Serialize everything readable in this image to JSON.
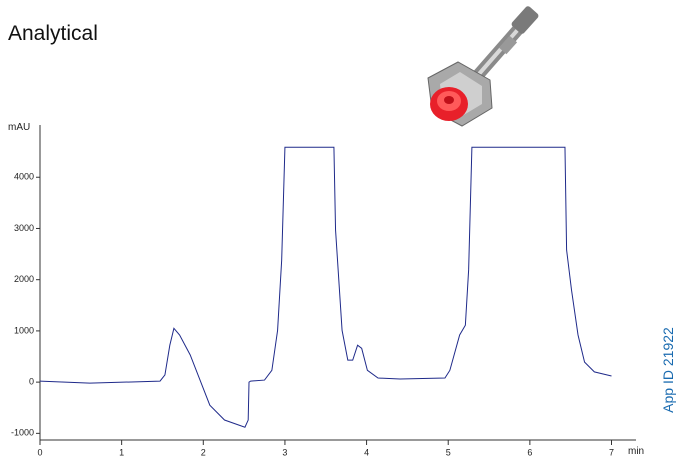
{
  "chart_data": {
    "type": "line",
    "title": "Analytical",
    "y_label": "mAU",
    "x_label": "min",
    "side_note": "App ID 21922",
    "color": "#1f2a8a",
    "x": [
      0,
      0.61,
      1.47,
      1.53,
      1.59,
      1.64,
      1.71,
      1.84,
      1.96,
      2.08,
      2.26,
      2.51,
      2.55,
      2.56,
      2.58,
      2.75,
      2.84,
      2.91,
      2.96,
      3.0,
      3.6,
      3.62,
      3.7,
      3.77,
      3.83,
      3.89,
      3.94,
      4.01,
      4.14,
      4.41,
      4.96,
      5.02,
      5.14,
      5.21,
      5.25,
      5.29,
      6.43,
      6.45,
      6.51,
      6.59,
      6.67,
      6.79,
      7.0
    ],
    "values": [
      20,
      -20,
      20,
      140,
      720,
      1050,
      920,
      530,
      40,
      -450,
      -740,
      -880,
      -740,
      0,
      20,
      40,
      230,
      1010,
      2380,
      4585,
      4585,
      2970,
      1010,
      430,
      430,
      720,
      660,
      230,
      80,
      60,
      80,
      230,
      920,
      1110,
      2190,
      4585,
      4585,
      2580,
      1800,
      920,
      390,
      200,
      120
    ],
    "xlim": [
      0,
      7.3
    ],
    "xticks": [
      0,
      1,
      2,
      3,
      4,
      5,
      6,
      7
    ],
    "ylim": [
      -1130,
      5020
    ],
    "yticks": [
      -1000,
      0,
      1000,
      2000,
      3000,
      4000
    ]
  }
}
